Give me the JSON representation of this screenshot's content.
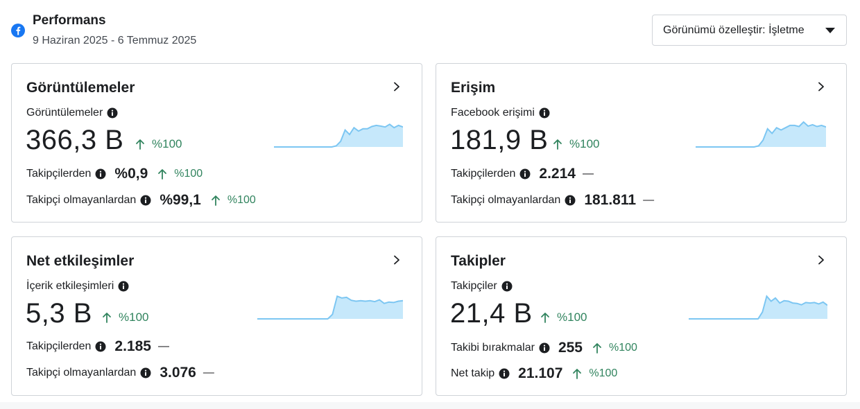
{
  "header": {
    "title": "Performans",
    "date_range": "9 Haziran 2025 - 6 Temmuz 2025",
    "customize_label": "Görünümü özelleştir: İşletme"
  },
  "colors": {
    "positive": "#31845e",
    "spark_line": "#7cc6f2",
    "spark_fill": "#c6e8fb",
    "facebook": "#1877f2"
  },
  "cards": [
    {
      "title": "Görüntülemeler",
      "metric_label": "Görüntülemeler",
      "value": "366,3 B",
      "change": "%100",
      "rows": [
        {
          "label": "Takipçilerden",
          "value": "%0,9",
          "change": "%100"
        },
        {
          "label": "Takipçi olmayanlardan",
          "value": "%99,1",
          "change": "%100"
        }
      ],
      "trend": [
        0,
        0,
        0,
        0,
        0,
        0,
        0,
        0,
        0,
        0,
        0,
        0,
        0,
        0,
        0.05,
        0.25,
        0.75,
        0.55,
        0.85,
        0.7,
        0.8,
        0.8,
        0.9,
        0.95,
        0.92,
        0.88,
        1,
        0.85,
        0.95,
        0.88
      ]
    },
    {
      "title": "Erişim",
      "metric_label": "Facebook erişimi",
      "value": "181,9 B",
      "change": "%100",
      "rows": [
        {
          "label": "Takipçilerden",
          "value": "2.214",
          "dash": "—"
        },
        {
          "label": "Takipçi olmayanlardan",
          "value": "181.811",
          "dash": "—"
        }
      ],
      "trend": [
        0,
        0,
        0,
        0,
        0,
        0,
        0,
        0,
        0,
        0,
        0,
        0,
        0,
        0,
        0.05,
        0.3,
        0.8,
        0.6,
        0.85,
        0.75,
        0.85,
        0.95,
        0.95,
        0.9,
        1.1,
        0.92,
        0.98,
        0.9,
        0.95,
        0.88
      ]
    },
    {
      "title": "Net etkileşimler",
      "metric_label": "İçerik etkileşimleri",
      "value": "5,3 B",
      "change": "%100",
      "rows": [
        {
          "label": "Takipçilerden",
          "value": "2.185",
          "dash": "—"
        },
        {
          "label": "Takipçi olmayanlardan",
          "value": "3.076",
          "dash": "—"
        }
      ],
      "trend": [
        0,
        0,
        0,
        0,
        0,
        0,
        0,
        0,
        0,
        0,
        0,
        0,
        0,
        0,
        0,
        0,
        0.2,
        1,
        0.92,
        0.95,
        0.82,
        0.78,
        0.8,
        0.78,
        0.8,
        0.76,
        0.84,
        0.68,
        0.74,
        0.72,
        0.78,
        0.8
      ]
    },
    {
      "title": "Takipler",
      "metric_label": "Takipçiler",
      "value": "21,4 B",
      "change": "%100",
      "rows": [
        {
          "label": "Takibi bırakmalar",
          "value": "255",
          "change": "%100"
        },
        {
          "label": "Net takip",
          "value": "21.107",
          "change": "%100"
        }
      ],
      "trend": [
        0,
        0,
        0,
        0,
        0,
        0,
        0,
        0,
        0,
        0,
        0,
        0,
        0,
        0,
        0,
        0,
        0,
        0.3,
        1,
        0.78,
        0.92,
        0.7,
        0.8,
        0.78,
        0.7,
        0.68,
        0.62,
        0.72,
        0.7,
        0.72,
        0.66,
        0.74,
        0.6
      ]
    }
  ]
}
